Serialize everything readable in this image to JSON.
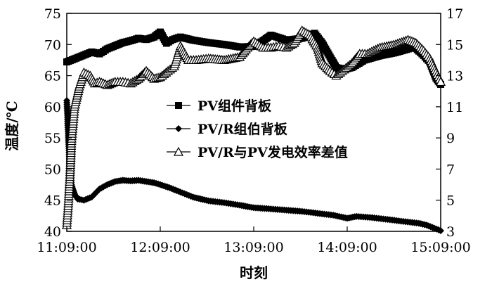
{
  "chart_data": {
    "type": "line",
    "title": "",
    "xlabel": "时刻",
    "ylabel_left": "温度/℃",
    "ylabel_right": "",
    "x_ticks": [
      "11:09:00",
      "12:09:00",
      "13:09:00",
      "14:09:00",
      "15:09:00"
    ],
    "x_range": [
      "11:09:00",
      "15:09:00"
    ],
    "ylim_left": [
      40,
      75
    ],
    "yticks_left": [
      "40",
      "45",
      "50",
      "55",
      "60",
      "65",
      "70",
      "75"
    ],
    "ylim_right": [
      3,
      17
    ],
    "yticks_right": [
      "3",
      "5",
      "7",
      "9",
      "11",
      "13",
      "15",
      "17"
    ],
    "grid": false,
    "legend_position": "center-left",
    "series": [
      {
        "name": "PV组件背板",
        "axis": "left",
        "marker": "square",
        "x": [
          "11:09:00",
          "11:15:00",
          "11:20:00",
          "11:25:00",
          "11:30:00",
          "11:35:00",
          "11:40:00",
          "11:45:00",
          "11:50:00",
          "11:55:00",
          "12:00:00",
          "12:05:00",
          "12:09:00",
          "12:13:00",
          "12:17:00",
          "12:22:00",
          "12:30:00",
          "12:40:00",
          "12:50:00",
          "13:00:00",
          "13:09:00",
          "13:15:00",
          "13:20:00",
          "13:30:00",
          "13:40:00",
          "13:48:00",
          "13:53:00",
          "13:58:00",
          "14:02:00",
          "14:07:00",
          "14:12:00",
          "14:20:00",
          "14:30:00",
          "14:40:00",
          "14:47:00",
          "14:52:00",
          "14:57:00",
          "15:02:00",
          "15:06:00",
          "15:09:00"
        ],
        "values": [
          67.2,
          67.8,
          68.3,
          68.8,
          68.5,
          69.3,
          69.8,
          70.3,
          70.6,
          71.0,
          70.8,
          71.2,
          72.0,
          70.2,
          70.8,
          71.2,
          70.7,
          70.3,
          70.0,
          69.6,
          69.7,
          70.6,
          71.5,
          70.7,
          71.0,
          71.8,
          70.2,
          68.0,
          66.3,
          66.0,
          66.3,
          67.5,
          68.2,
          68.7,
          69.2,
          69.6,
          68.5,
          67.2,
          64.6,
          63.6
        ]
      },
      {
        "name": "PV/R组伯背板",
        "axis": "left",
        "marker": "diamond",
        "x": [
          "11:09:00",
          "11:10:00",
          "11:11:00",
          "11:12:00",
          "11:14:00",
          "11:16:00",
          "11:20:00",
          "11:25:00",
          "11:30:00",
          "11:35:00",
          "11:40:00",
          "11:45:00",
          "11:50:00",
          "11:55:00",
          "12:00:00",
          "12:05:00",
          "12:09:00",
          "12:15:00",
          "12:22:00",
          "12:30:00",
          "12:40:00",
          "12:50:00",
          "13:00:00",
          "13:09:00",
          "13:20:00",
          "13:30:00",
          "13:40:00",
          "13:50:00",
          "14:00:00",
          "14:09:00",
          "14:15:00",
          "14:25:00",
          "14:35:00",
          "14:45:00",
          "14:55:00",
          "15:00:00",
          "15:05:00",
          "15:09:00"
        ],
        "values": [
          61.0,
          55.0,
          50.0,
          47.5,
          46.0,
          45.2,
          45.0,
          45.5,
          46.8,
          47.5,
          48.0,
          48.2,
          48.1,
          48.2,
          48.0,
          47.8,
          47.5,
          47.0,
          46.3,
          45.5,
          44.9,
          44.6,
          44.2,
          43.8,
          43.6,
          43.4,
          43.2,
          42.9,
          42.6,
          42.1,
          42.4,
          42.2,
          41.9,
          41.6,
          41.3,
          41.0,
          40.5,
          40.1
        ]
      },
      {
        "name": "PV/R与PV发电效率差值",
        "axis": "right",
        "marker": "triangle",
        "x": [
          "11:09:00",
          "11:10:00",
          "11:11:00",
          "11:12:00",
          "11:14:00",
          "11:17:00",
          "11:20:00",
          "11:24:00",
          "11:27:00",
          "11:30:00",
          "11:35:00",
          "11:40:00",
          "11:45:00",
          "11:50:00",
          "11:55:00",
          "12:00:00",
          "12:05:00",
          "12:09:00",
          "12:14:00",
          "12:18:00",
          "12:22:00",
          "12:27:00",
          "12:32:00",
          "12:40:00",
          "12:50:00",
          "13:00:00",
          "13:05:00",
          "13:09:00",
          "13:15:00",
          "13:20:00",
          "13:25:00",
          "13:30:00",
          "13:35:00",
          "13:40:00",
          "13:45:00",
          "13:50:00",
          "13:53:00",
          "13:58:00",
          "14:02:00",
          "14:07:00",
          "14:12:00",
          "14:17:00",
          "14:22:00",
          "14:30:00",
          "14:40:00",
          "14:48:00",
          "14:53:00",
          "14:58:00",
          "15:02:00",
          "15:06:00",
          "15:09:00"
        ],
        "values": [
          3.4,
          4.8,
          6.5,
          8.8,
          11.0,
          12.3,
          13.2,
          13.0,
          12.5,
          12.6,
          12.4,
          12.6,
          12.6,
          12.5,
          12.8,
          13.3,
          12.8,
          12.9,
          13.3,
          13.6,
          14.9,
          14.0,
          14.0,
          14.1,
          14.0,
          14.2,
          14.8,
          15.2,
          14.8,
          14.8,
          14.9,
          14.8,
          15.1,
          15.9,
          15.6,
          14.8,
          13.8,
          13.3,
          13.0,
          13.4,
          13.8,
          14.4,
          14.4,
          14.8,
          15.0,
          15.3,
          15.1,
          14.6,
          14.1,
          13.2,
          12.6
        ]
      }
    ]
  }
}
